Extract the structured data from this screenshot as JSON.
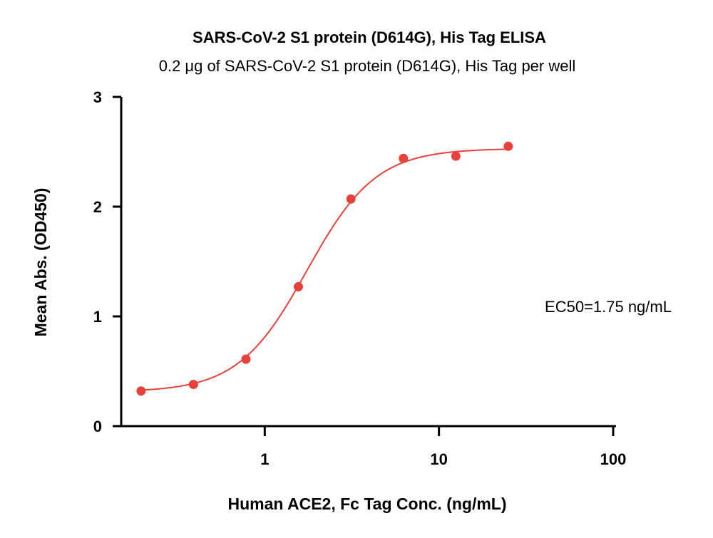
{
  "chart_data": {
    "type": "scatter",
    "title": "SARS-CoV-2 S1 protein (D614G), His Tag ELISA",
    "subtitle": "0.2 μg of SARS-CoV-2 S1 protein (D614G), His Tag per well",
    "xlabel": "Human ACE2, Fc Tag Conc. (ng/mL)",
    "ylabel": "Mean Abs. (OD450)",
    "x_scale": "log",
    "xlim": [
      0.15,
      100
    ],
    "ylim": [
      0,
      3
    ],
    "x_ticks": [
      1,
      10,
      100
    ],
    "x_tick_labels": [
      "1",
      "10",
      "100"
    ],
    "y_ticks": [
      0,
      1,
      2,
      3
    ],
    "y_tick_labels": [
      "0",
      "1",
      "2",
      "3"
    ],
    "grid": false,
    "series": [
      {
        "color": "#e8413c",
        "x": [
          0.195,
          0.39,
          0.78,
          1.56,
          3.125,
          6.25,
          12.5,
          25
        ],
        "y": [
          0.32,
          0.38,
          0.61,
          1.27,
          2.07,
          2.44,
          2.46,
          2.55
        ]
      }
    ],
    "fit_curve": {
      "model": "4PL",
      "bottom": 0.31,
      "top": 2.53,
      "ec50": 1.75,
      "hill": 2.2,
      "color": "#e8413c"
    },
    "annotations": [
      {
        "text": "EC50=1.75 ng/mL"
      }
    ]
  }
}
